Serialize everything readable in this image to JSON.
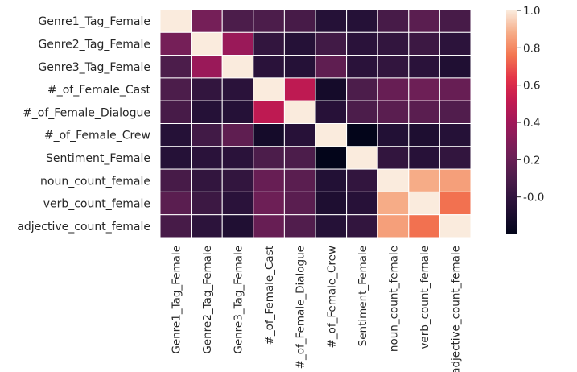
{
  "chart_data": {
    "type": "heatmap",
    "title": "",
    "rows": [
      "Genre1_Tag_Female",
      "Genre2_Tag_Female",
      "Genre3_Tag_Female",
      "#_of_Female_Cast",
      "#_of_Female_Dialogue",
      "#_of_Female_Crew",
      "Sentiment_Female",
      "noun_count_female",
      "verb_count_female",
      "adjective_count_female"
    ],
    "columns": [
      "Genre1_Tag_Female",
      "Genre2_Tag_Female",
      "Genre3_Tag_Female",
      "#_of_Female_Cast",
      "#_of_Female_Dialogue",
      "#_of_Female_Crew",
      "Sentiment_Female",
      "noun_count_female",
      "verb_count_female",
      "adjective_count_female"
    ],
    "values": [
      [
        1.0,
        0.25,
        0.1,
        0.1,
        0.08,
        -0.05,
        -0.05,
        0.08,
        0.15,
        0.08
      ],
      [
        0.25,
        1.0,
        0.38,
        0.0,
        -0.05,
        0.06,
        -0.03,
        0.0,
        0.04,
        -0.02
      ],
      [
        0.1,
        0.38,
        1.0,
        -0.03,
        -0.05,
        0.17,
        -0.03,
        0.0,
        -0.03,
        -0.07
      ],
      [
        0.1,
        0.0,
        -0.03,
        1.0,
        0.5,
        -0.12,
        0.1,
        0.2,
        0.22,
        0.2
      ],
      [
        0.08,
        -0.05,
        -0.05,
        0.5,
        1.0,
        -0.04,
        0.1,
        0.15,
        0.15,
        0.12
      ],
      [
        -0.05,
        0.06,
        0.17,
        -0.12,
        -0.04,
        1.0,
        -0.2,
        -0.06,
        -0.08,
        -0.05
      ],
      [
        -0.05,
        -0.03,
        -0.03,
        0.1,
        0.1,
        -0.2,
        1.0,
        0.0,
        -0.04,
        0.0
      ],
      [
        0.08,
        0.0,
        0.0,
        0.2,
        0.15,
        -0.06,
        0.0,
        1.0,
        0.88,
        0.85
      ],
      [
        0.15,
        0.04,
        -0.03,
        0.22,
        0.15,
        -0.08,
        -0.04,
        0.88,
        1.0,
        0.75
      ],
      [
        0.08,
        -0.02,
        -0.07,
        0.2,
        0.12,
        -0.05,
        0.0,
        0.85,
        0.75,
        1.0
      ]
    ],
    "colorbar": {
      "range": [
        -0.2,
        1.0
      ],
      "ticks": [
        "-0.0",
        "0.2",
        "0.4",
        "0.6",
        "0.8",
        "1.0"
      ],
      "tick_values": [
        0,
        0.2,
        0.4,
        0.6,
        0.8,
        1.0
      ]
    },
    "colormap": "rocket",
    "xlabel": "",
    "ylabel": ""
  }
}
